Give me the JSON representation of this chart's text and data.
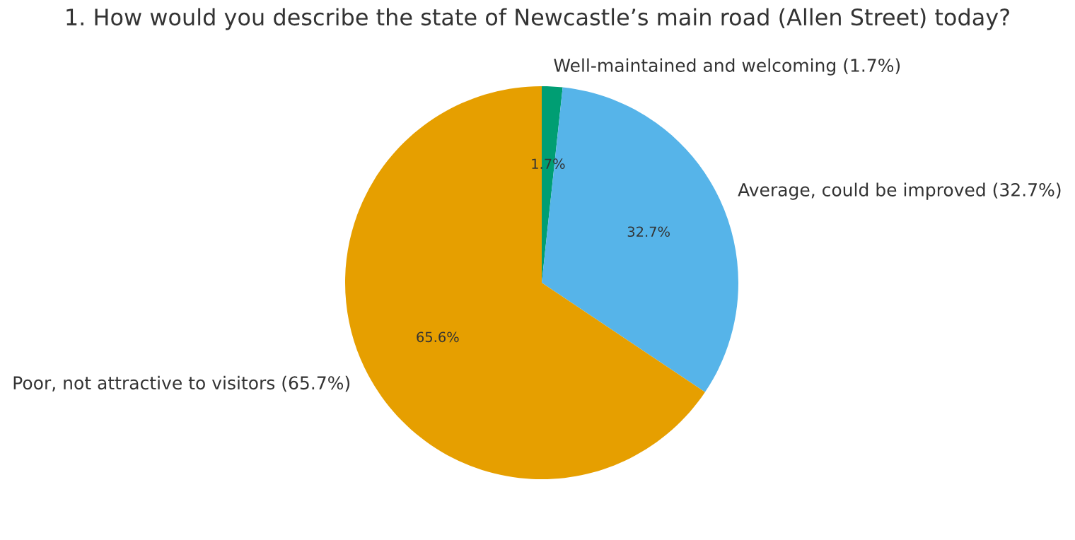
{
  "chart_data": {
    "type": "pie",
    "title": "1. How would you describe the state of Newcastle’s main road (Allen Street) today?",
    "categories": [
      "Well-maintained and welcoming (1.7%)",
      "Average, could be improved (32.7%)",
      "Poor, not attractive to visitors (65.7%)"
    ],
    "values": [
      1.7,
      32.7,
      65.6
    ],
    "colors": [
      "#009e73",
      "#56b4e9",
      "#e69f00"
    ],
    "value_labels": [
      "1.7%",
      "32.7%",
      "65.6%"
    ]
  }
}
